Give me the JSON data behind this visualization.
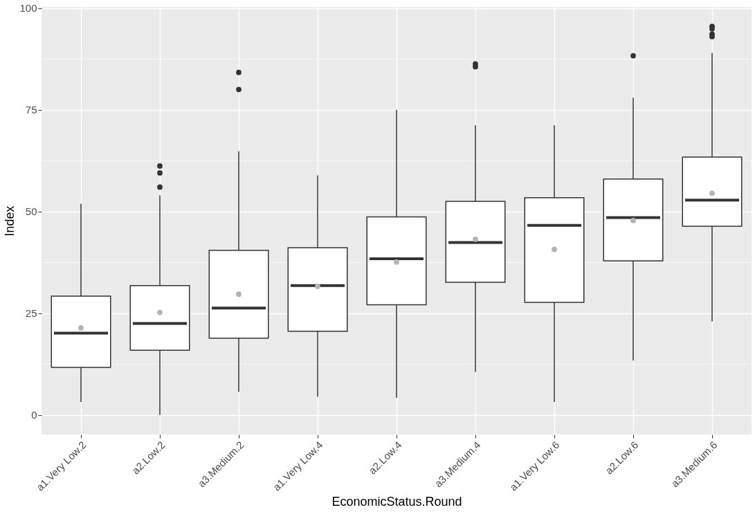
{
  "chart_data": {
    "type": "box",
    "xlabel": "EconomicStatus.Round",
    "ylabel": "Index",
    "categories": [
      "a1.Very Low.2",
      "a2.Low.2",
      "a3.Medium.2",
      "a1.Very Low.4",
      "a2.Low.4",
      "a3.Medium.4",
      "a1.Very Low.6",
      "a2.Low.6",
      "a3.Medium.6"
    ],
    "boxes": [
      {
        "low": 3.2,
        "q1": 11.7,
        "median": 20.1,
        "q3": 29.2,
        "high": 51.9,
        "mean": 21.4
      },
      {
        "low": 0,
        "q1": 15.9,
        "median": 22.5,
        "q3": 31.8,
        "high": 54,
        "mean": 25.2,
        "outliers": [
          56,
          59.5,
          61.2
        ]
      },
      {
        "low": 5.7,
        "q1": 18.9,
        "median": 26.3,
        "q3": 40.5,
        "high": 64.8,
        "mean": 29.7,
        "outliers": [
          80,
          84.2
        ]
      },
      {
        "low": 4.5,
        "q1": 20.6,
        "median": 31.8,
        "q3": 41.1,
        "high": 58.9,
        "mean": 31.6
      },
      {
        "low": 4.2,
        "q1": 27.1,
        "median": 38.4,
        "q3": 48.7,
        "high": 75,
        "mean": 37.6
      },
      {
        "low": 10.6,
        "q1": 32.6,
        "median": 42.4,
        "q3": 52.5,
        "high": 71.2,
        "mean": 43.2,
        "outliers": [
          85.6,
          86.3
        ]
      },
      {
        "low": 3.2,
        "q1": 27.7,
        "median": 46.6,
        "q3": 53.4,
        "high": 71.2,
        "mean": 40.7
      },
      {
        "low": 13.4,
        "q1": 37.9,
        "median": 48.5,
        "q3": 58,
        "high": 78,
        "mean": 47.8,
        "outliers": [
          88.3
        ]
      },
      {
        "low": 23,
        "q1": 46.4,
        "median": 52.8,
        "q3": 63.4,
        "high": 89,
        "mean": 54.5,
        "outliers": [
          93,
          93.6,
          94.9,
          95.5
        ]
      }
    ],
    "ylim": [
      -4.8,
      100.3
    ],
    "yticks": [
      0,
      {
        "value": 12.5,
        "label": null
      },
      25,
      {
        "value": 37.5,
        "label": null
      },
      50,
      {
        "value": 62.5,
        "label": null
      },
      75,
      {
        "value": 87.5,
        "label": null
      },
      100
    ],
    "grid": true
  }
}
